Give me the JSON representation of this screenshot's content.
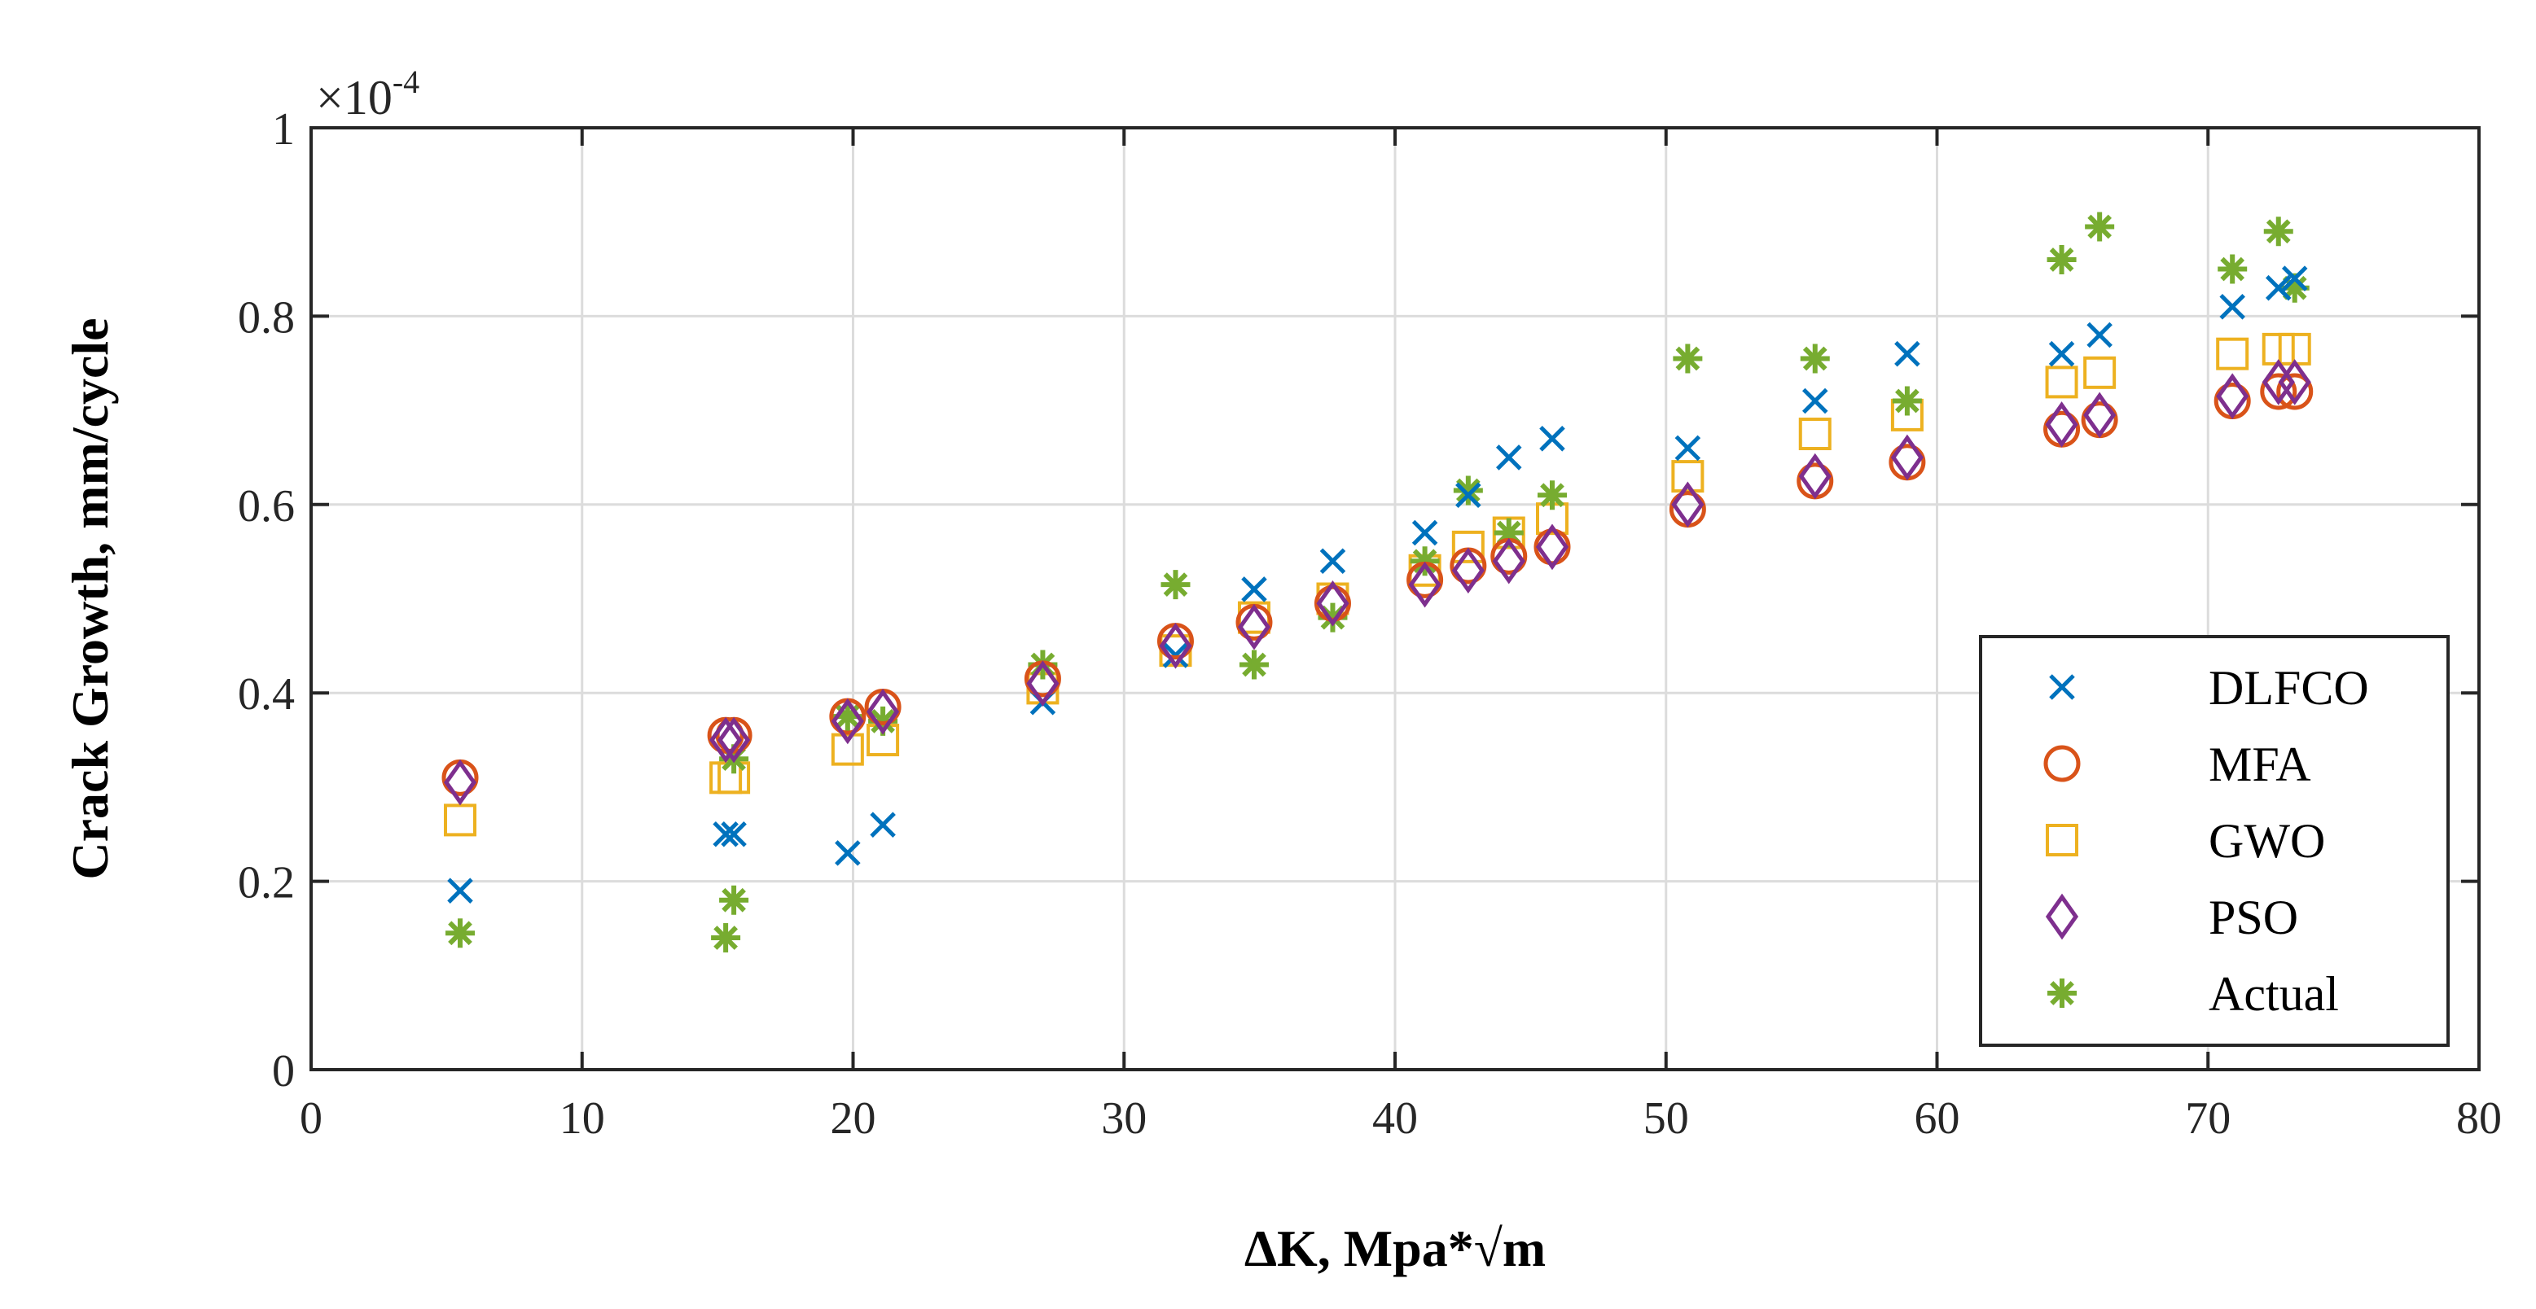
{
  "chart_data": {
    "type": "scatter",
    "title": "",
    "xlabel": "ΔK, Mpa*√m",
    "ylabel": "Crack Growth, mm/cycle",
    "xlim": [
      0,
      80
    ],
    "ylim": [
      0,
      1
    ],
    "xticks": [
      0,
      10,
      20,
      30,
      40,
      50,
      60,
      70,
      80
    ],
    "yticks": [
      0,
      0.2,
      0.4,
      0.6,
      0.8,
      1
    ],
    "xtick_labels": [
      "0",
      "10",
      "20",
      "30",
      "40",
      "50",
      "60",
      "70",
      "80"
    ],
    "ytick_labels": [
      "0",
      "0.2",
      "0.4",
      "0.6",
      "0.8",
      "1"
    ],
    "y_scale_label": "×10",
    "y_scale_exponent": "-4",
    "grid": true,
    "legend_position": "bottom-right",
    "series": [
      {
        "name": "DLFCO",
        "marker": "x",
        "color": "#0072BD",
        "x": [
          5.5,
          15.3,
          15.6,
          19.8,
          21.1,
          27.0,
          31.9,
          34.8,
          37.7,
          41.1,
          42.7,
          44.2,
          45.8,
          50.8,
          55.5,
          58.9,
          64.6,
          66.0,
          70.9,
          72.6,
          73.2
        ],
        "y": [
          0.19,
          0.25,
          0.25,
          0.23,
          0.26,
          0.39,
          0.44,
          0.51,
          0.54,
          0.57,
          0.61,
          0.65,
          0.67,
          0.66,
          0.71,
          0.76,
          0.76,
          0.78,
          0.81,
          0.83,
          0.84
        ]
      },
      {
        "name": "MFA",
        "marker": "o",
        "color": "#D95319",
        "x": [
          5.5,
          15.3,
          15.6,
          19.8,
          21.1,
          27.0,
          31.9,
          34.8,
          37.7,
          41.1,
          42.7,
          44.2,
          45.8,
          50.8,
          55.5,
          58.9,
          64.6,
          66.0,
          70.9,
          72.6,
          73.2
        ],
        "y": [
          0.31,
          0.355,
          0.355,
          0.375,
          0.385,
          0.415,
          0.455,
          0.475,
          0.495,
          0.52,
          0.535,
          0.545,
          0.555,
          0.595,
          0.625,
          0.645,
          0.68,
          0.69,
          0.71,
          0.72,
          0.72
        ]
      },
      {
        "name": "GWO",
        "marker": "square",
        "color": "#EDB120",
        "x": [
          5.5,
          15.3,
          15.6,
          19.8,
          21.1,
          27.0,
          31.9,
          34.8,
          37.7,
          41.1,
          42.7,
          44.2,
          45.8,
          50.8,
          55.5,
          58.9,
          64.6,
          66.0,
          70.9,
          72.6,
          73.2
        ],
        "y": [
          0.265,
          0.31,
          0.31,
          0.34,
          0.35,
          0.405,
          0.445,
          0.48,
          0.5,
          0.53,
          0.555,
          0.57,
          0.585,
          0.63,
          0.675,
          0.695,
          0.73,
          0.74,
          0.76,
          0.765,
          0.765
        ]
      },
      {
        "name": "PSO",
        "marker": "diamond",
        "color": "#7E2F8E",
        "x": [
          5.5,
          15.3,
          15.6,
          19.8,
          21.1,
          27.0,
          31.9,
          34.8,
          37.7,
          41.1,
          42.7,
          44.2,
          45.8,
          50.8,
          55.5,
          58.9,
          64.6,
          66.0,
          70.9,
          72.6,
          73.2
        ],
        "y": [
          0.305,
          0.35,
          0.35,
          0.37,
          0.38,
          0.41,
          0.45,
          0.47,
          0.495,
          0.515,
          0.53,
          0.54,
          0.555,
          0.6,
          0.63,
          0.65,
          0.685,
          0.695,
          0.715,
          0.73,
          0.73
        ]
      },
      {
        "name": "Actual",
        "marker": "asterisk",
        "color": "#77AC30",
        "x": [
          5.5,
          15.3,
          15.6,
          15.6,
          19.8,
          21.1,
          27.0,
          31.9,
          34.8,
          37.7,
          41.1,
          42.7,
          44.2,
          45.8,
          50.8,
          55.5,
          58.9,
          64.6,
          66.0,
          70.9,
          72.6,
          73.2
        ],
        "y": [
          0.145,
          0.14,
          0.18,
          0.33,
          0.375,
          0.37,
          0.43,
          0.515,
          0.43,
          0.48,
          0.54,
          0.615,
          0.57,
          0.61,
          0.755,
          0.755,
          0.71,
          0.86,
          0.895,
          0.85,
          0.89,
          0.83
        ]
      }
    ]
  }
}
